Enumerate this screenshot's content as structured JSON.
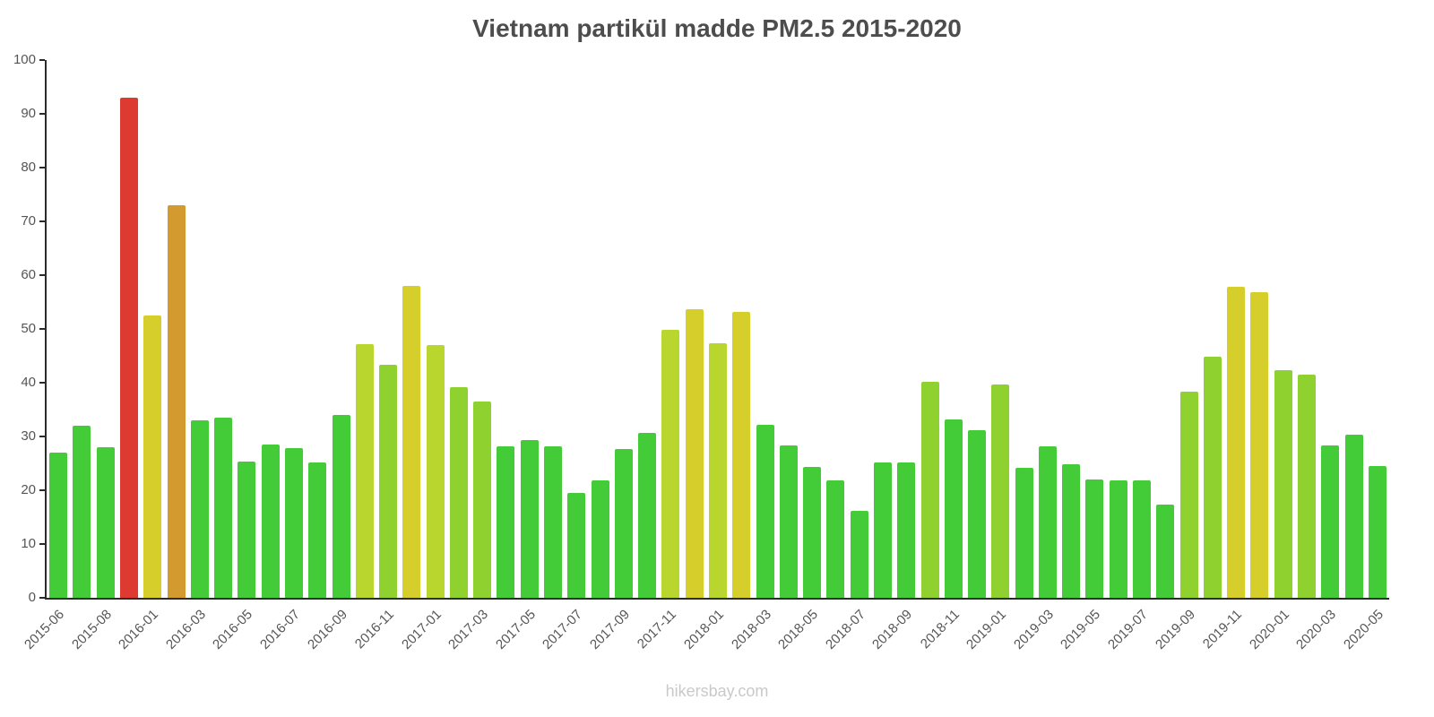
{
  "title": "Vietnam partikül madde PM2.5 2015-2020",
  "watermark": "hikersbay.com",
  "chart_data": {
    "type": "bar",
    "title": "Vietnam partikül madde PM2.5 2015-2020",
    "xlabel": "",
    "ylabel": "",
    "ylim": [
      0,
      100
    ],
    "y_ticks": [
      0,
      10,
      20,
      30,
      40,
      50,
      60,
      70,
      80,
      90,
      100
    ],
    "grid": false,
    "legend": false,
    "label_every": 2,
    "x_tick_labels": [
      "2015-06",
      "2015-08",
      "2016-01",
      "2016-03",
      "2016-05",
      "2016-07",
      "2016-09",
      "2016-11",
      "2017-01",
      "2017-03",
      "2017-05",
      "2017-07",
      "2017-09",
      "2017-11",
      "2018-01",
      "2018-03",
      "2018-05",
      "2018-07",
      "2018-09",
      "2018-11",
      "2019-01",
      "2019-03",
      "2019-05",
      "2019-07",
      "2019-09",
      "2019-11",
      "2020-01",
      "2020-03",
      "2020-05"
    ],
    "values": [
      27,
      32,
      28,
      93,
      52.5,
      73,
      33,
      33.5,
      25.3,
      28.5,
      27.8,
      25.2,
      34,
      47.2,
      43.3,
      58,
      47,
      39.2,
      36.5,
      28.2,
      29.3,
      28.2,
      19.5,
      21.8,
      27.6,
      30.7,
      49.9,
      53.7,
      47.4,
      53.2,
      32.2,
      28.4,
      24.3,
      21.9,
      16.1,
      25.2,
      25.1,
      40.1,
      33.1,
      31.2,
      39.7,
      24.2,
      28.1,
      24.8,
      22,
      21.8,
      21.8,
      17.4,
      38.4,
      44.9,
      57.8,
      56.9,
      42.4,
      41.5,
      28.4,
      30.4,
      24.5
    ],
    "color_scale": [
      {
        "max": 35,
        "color": "#43CB38"
      },
      {
        "max": 45,
        "color": "#8FD22F"
      },
      {
        "max": 51,
        "color": "#B8D62E"
      },
      {
        "max": 65,
        "color": "#D6CF2B"
      },
      {
        "max": 80,
        "color": "#D29A2F"
      },
      {
        "max": 999,
        "color": "#DD3B31"
      }
    ]
  }
}
